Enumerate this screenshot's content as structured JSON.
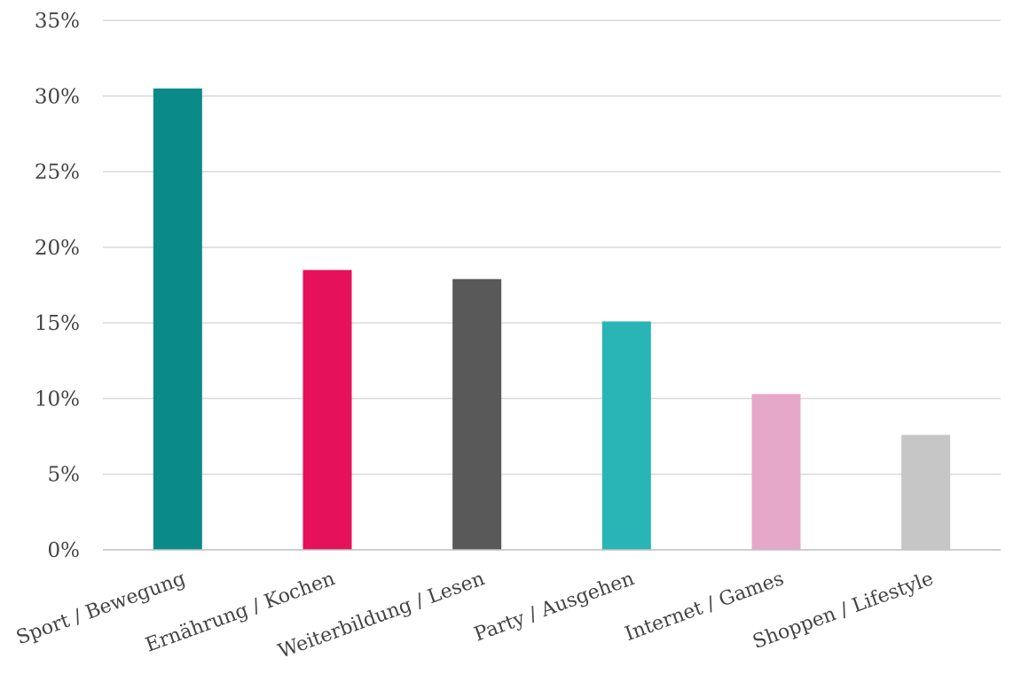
{
  "chart_data": {
    "type": "bar",
    "title": "",
    "xlabel": "",
    "ylabel": "",
    "categories": [
      "Sport / Bewegung",
      "Ernährung / Kochen",
      "Weiterbildung / Lesen",
      "Party / Ausgehen",
      "Internet / Games",
      "Shoppen / Lifestyle"
    ],
    "values": [
      30.5,
      18.5,
      17.9,
      15.1,
      10.3,
      7.6
    ],
    "colors": [
      "#0b8a8a",
      "#e5115a",
      "#595959",
      "#29b5b5",
      "#e6a8c8",
      "#c6c6c6"
    ],
    "ylim": [
      0,
      35
    ],
    "yticks": [
      0,
      5,
      10,
      15,
      20,
      25,
      30,
      35
    ],
    "ytick_labels": [
      "0%",
      "5%",
      "10%",
      "15%",
      "20%",
      "25%",
      "30%",
      "35%"
    ],
    "grid": true,
    "legend": "none"
  }
}
